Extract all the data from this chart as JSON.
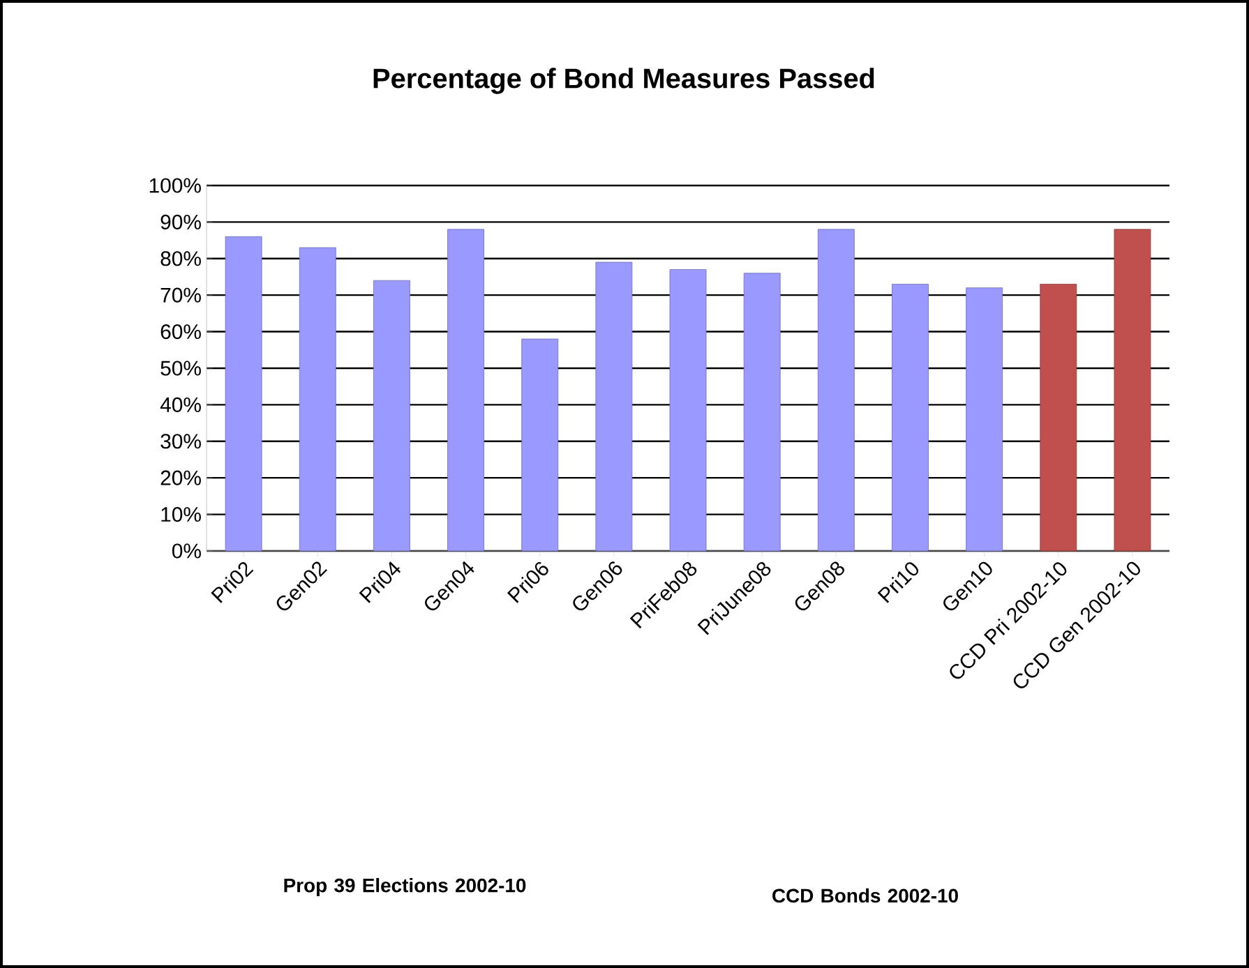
{
  "chart_data": {
    "type": "bar",
    "title": "Percentage of Bond Measures Passed",
    "categories": [
      "Pri02",
      "Gen02",
      "Pri04",
      "Gen04",
      "Pri06",
      "Gen06",
      "PriFeb08",
      "PriJune08",
      "Gen08",
      "Pri10",
      "Gen10",
      "CCD Pri 2002-10",
      "CCD Gen 2002-10"
    ],
    "values": [
      86,
      83,
      74,
      88,
      58,
      79,
      77,
      76,
      88,
      73,
      72,
      73,
      88
    ],
    "colors": [
      "#9999ff",
      "#9999ff",
      "#9999ff",
      "#9999ff",
      "#9999ff",
      "#9999ff",
      "#9999ff",
      "#9999ff",
      "#9999ff",
      "#9999ff",
      "#9999ff",
      "#c0504d",
      "#c0504d"
    ],
    "ylim": [
      0,
      100
    ],
    "yticks": [
      {
        "value": 0,
        "label": "0%"
      },
      {
        "value": 10,
        "label": "10%"
      },
      {
        "value": 20,
        "label": "20%"
      },
      {
        "value": 30,
        "label": "30%"
      },
      {
        "value": 40,
        "label": "40%"
      },
      {
        "value": 50,
        "label": "50%"
      },
      {
        "value": 60,
        "label": "60%"
      },
      {
        "value": 70,
        "label": "70%"
      },
      {
        "value": 80,
        "label": "80%"
      },
      {
        "value": 90,
        "label": "90%"
      },
      {
        "value": 100,
        "label": "100%"
      }
    ],
    "grid": "y",
    "annotations": [
      "Prop 39 Elections 2002-10",
      "CCD Bonds 2002-10"
    ]
  }
}
